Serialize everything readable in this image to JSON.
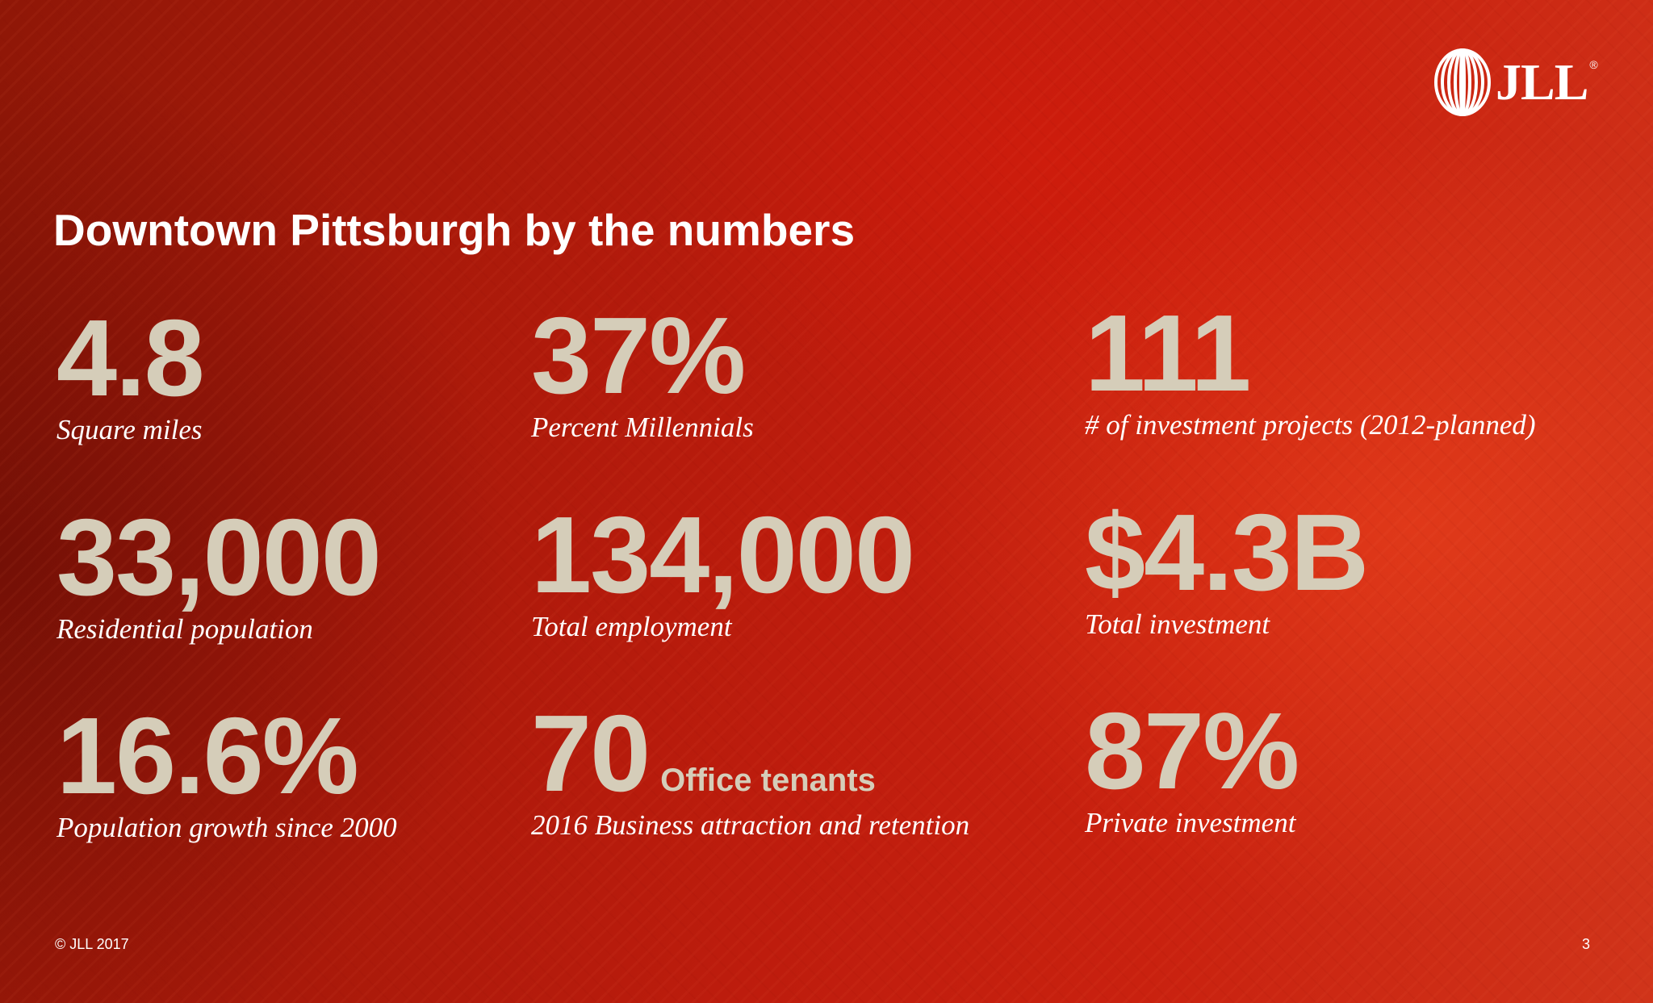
{
  "logo": {
    "text": "JLL",
    "registered": "®"
  },
  "title": "Downtown Pittsburgh by the numbers",
  "stats": [
    {
      "value": "4.8",
      "label": "Square miles"
    },
    {
      "value": "37%",
      "label": "Percent Millennials"
    },
    {
      "value": "111",
      "label": "# of investment projects (2012-planned)"
    },
    {
      "value": "33,000",
      "label": "Residential population"
    },
    {
      "value": "134,000",
      "label": "Total employment"
    },
    {
      "value": "$4.3B",
      "label": "Total investment"
    },
    {
      "value": "16.6%",
      "label": "Population growth since 2000"
    },
    {
      "value": "70",
      "suffix": "Office tenants",
      "label": "2016 Business attraction and retention"
    },
    {
      "value": "87%",
      "label": "Private investment"
    }
  ],
  "footer": {
    "copyright": "© JLL 2017",
    "page_number": "3"
  },
  "colors": {
    "accent_text": "#d5cdb9",
    "background": "#bd1c0d",
    "white": "#ffffff"
  }
}
